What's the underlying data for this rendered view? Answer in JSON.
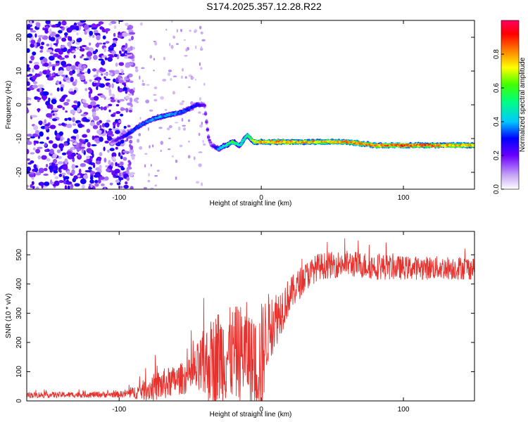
{
  "title": "S174.2025.357.12.28.R22",
  "chart_data": [
    {
      "type": "heatmap",
      "name": "spectrogram",
      "xlabel": "Height of straight line (km)",
      "ylabel": "Frequency (Hz)",
      "xlim": [
        -165,
        150
      ],
      "ylim": [
        -25,
        25
      ],
      "xticks": [
        "-100",
        "0",
        "100"
      ],
      "xtick_values": [
        -100,
        0,
        100
      ],
      "yticks": [
        "-20",
        "-10",
        "0",
        "10",
        "20"
      ],
      "ytick_values": [
        -20,
        -10,
        0,
        10,
        20
      ],
      "colorbar": {
        "label": "Normalized spectral amplitude",
        "range": [
          0,
          1
        ],
        "ticks": [
          "0.0",
          "0.2",
          "0.4",
          "0.6",
          "0.8"
        ],
        "tick_values": [
          0.0,
          0.2,
          0.4,
          0.6,
          0.8
        ]
      },
      "ridge": {
        "x": [
          -105,
          -95,
          -85,
          -75,
          -65,
          -55,
          -45,
          -40,
          -37,
          -35,
          -30,
          -25,
          -20,
          -15,
          -10,
          -5,
          0,
          20,
          40,
          60,
          80,
          100,
          120,
          150
        ],
        "freq": [
          -11,
          -9,
          -6,
          -4,
          -3,
          -2,
          0,
          0,
          -10,
          -12,
          -13,
          -12,
          -11,
          -12,
          -9,
          -11,
          -11,
          -11,
          -11,
          -11,
          -12,
          -12,
          -12,
          -12
        ],
        "amplitude": [
          0.15,
          0.3,
          0.35,
          0.4,
          0.4,
          0.35,
          0.3,
          0.2,
          0.2,
          0.15,
          0.4,
          0.5,
          0.6,
          0.5,
          0.5,
          0.7,
          0.8,
          0.85,
          0.8,
          0.85,
          0.85,
          0.9,
          0.85,
          0.8
        ]
      },
      "noise_region": [
        -165,
        -90
      ]
    },
    {
      "type": "line",
      "name": "snr",
      "xlabel": "Height of straight line (km)",
      "ylabel": "SNR (10 * v/v)",
      "xlim": [
        -165,
        150
      ],
      "ylim": [
        0,
        580
      ],
      "xticks": [
        "-100",
        "0",
        "100"
      ],
      "xtick_values": [
        -100,
        0,
        100
      ],
      "yticks": [
        "0",
        "100",
        "200",
        "300",
        "400",
        "500"
      ],
      "ytick_values": [
        0,
        100,
        200,
        300,
        400,
        500
      ],
      "color": "#e8312d",
      "envelope": {
        "x": [
          -165,
          -100,
          -90,
          -80,
          -70,
          -60,
          -50,
          -40,
          -30,
          -20,
          -10,
          -5,
          0,
          5,
          10,
          20,
          30,
          40,
          60,
          80,
          100,
          120,
          150
        ],
        "base": [
          20,
          22,
          28,
          40,
          55,
          70,
          85,
          120,
          150,
          160,
          170,
          120,
          140,
          250,
          280,
          360,
          420,
          460,
          470,
          460,
          455,
          455,
          455
        ],
        "noise": [
          10,
          10,
          20,
          40,
          55,
          50,
          60,
          130,
          170,
          160,
          170,
          150,
          200,
          120,
          100,
          60,
          50,
          45,
          45,
          45,
          40,
          40,
          40
        ]
      }
    }
  ]
}
